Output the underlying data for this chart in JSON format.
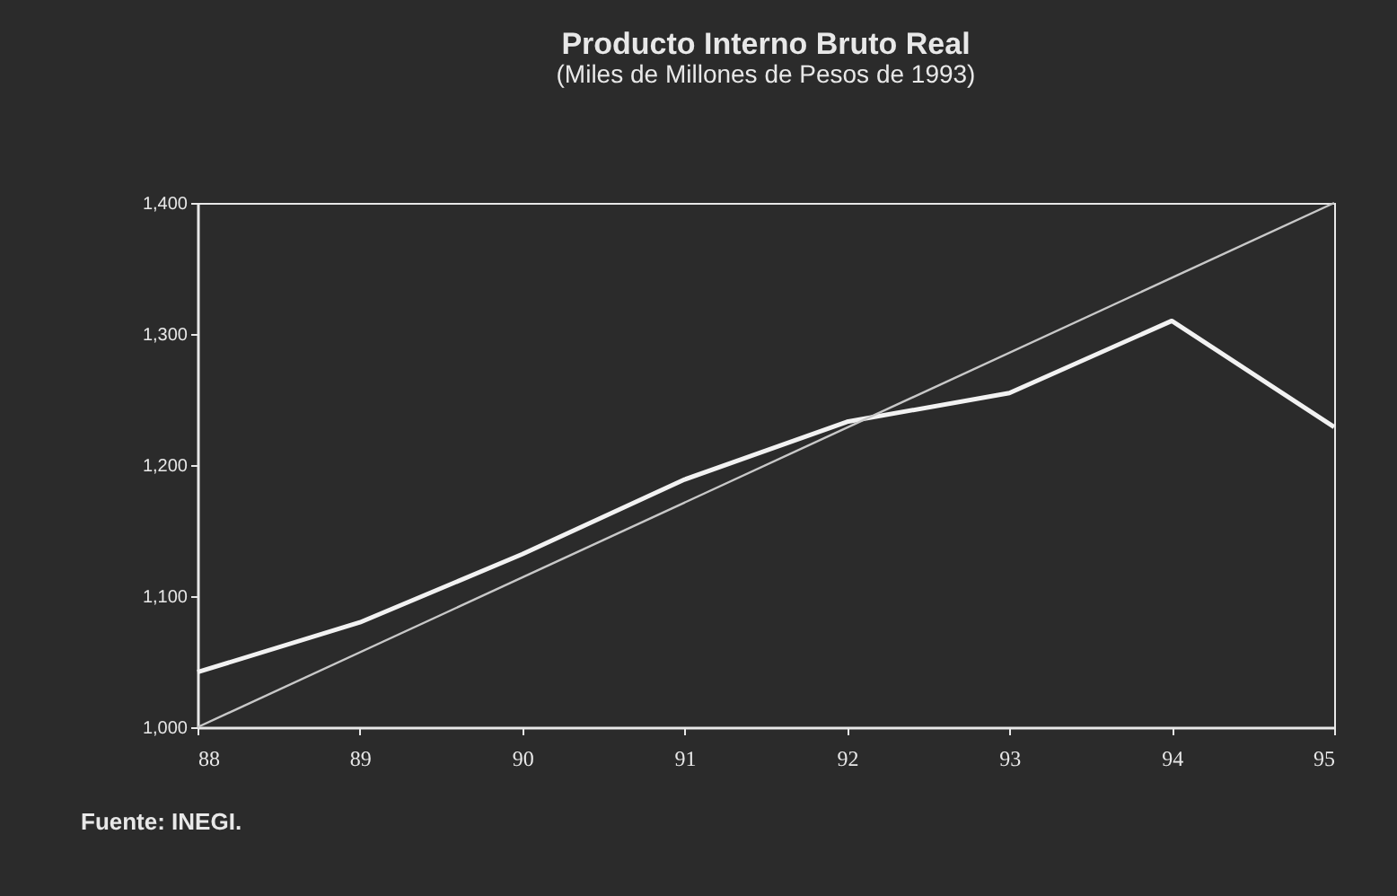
{
  "chart_data": {
    "type": "line",
    "title": "Producto Interno Bruto Real",
    "subtitle": "(Miles de Millones de Pesos de 1993)",
    "x": [
      88,
      89,
      90,
      91,
      92,
      93,
      94,
      95
    ],
    "series": [
      {
        "color": "#f2f2f2",
        "values": [
          1042,
          1080,
          1132,
          1189,
          1233,
          1255,
          1310,
          1229
        ]
      },
      {
        "type": "line",
        "color": "#c8c8c8",
        "x": [
          88,
          95
        ],
        "values": [
          1000,
          1400
        ]
      }
    ],
    "xlim": [
      88,
      95
    ],
    "xticks": [
      88,
      89,
      90,
      91,
      92,
      93,
      94,
      95
    ],
    "ylim": [
      1000,
      1400
    ],
    "yticks": [
      {
        "value": 1000,
        "label": "1,000"
      },
      {
        "value": 1100,
        "label": "1,100"
      },
      {
        "value": 1200,
        "label": "1,200"
      },
      {
        "value": 1300,
        "label": "1,300"
      },
      {
        "value": 1400,
        "label": "1,400"
      }
    ],
    "grid": false,
    "marker": "none",
    "line_style": "solid",
    "annotations": [
      "Fuente: INEGI."
    ]
  }
}
